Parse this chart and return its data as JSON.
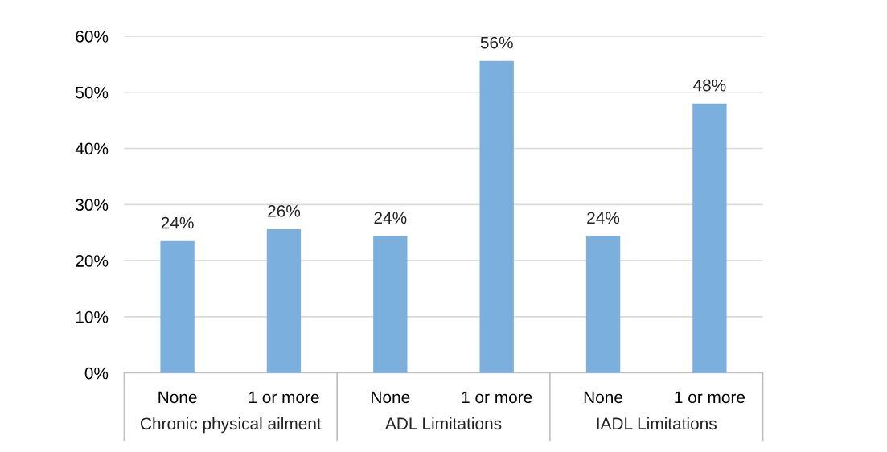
{
  "chart_data": {
    "type": "bar",
    "categories": [
      "None",
      "1 or more",
      "None",
      "1 or more",
      "None",
      "1 or more"
    ],
    "values": [
      23.5,
      25.6,
      24.4,
      55.6,
      24.4,
      48.0
    ],
    "value_labels": [
      "24%",
      "26%",
      "24%",
      "56%",
      "24%",
      "48%"
    ],
    "color": "#7aafde",
    "ylim": [
      0,
      60
    ],
    "yticks": [
      {
        "value": 0,
        "label": "0%"
      },
      {
        "value": 10,
        "label": "10%"
      },
      {
        "value": 20,
        "label": "20%"
      },
      {
        "value": 30,
        "label": "30%"
      },
      {
        "value": 40,
        "label": "40%"
      },
      {
        "value": 50,
        "label": "50%"
      },
      {
        "value": 60,
        "label": "60%"
      }
    ],
    "grid": "y",
    "annotations": [
      "Chronic physical ailment",
      "ADL Limitations",
      "IADL Limitations"
    ]
  }
}
